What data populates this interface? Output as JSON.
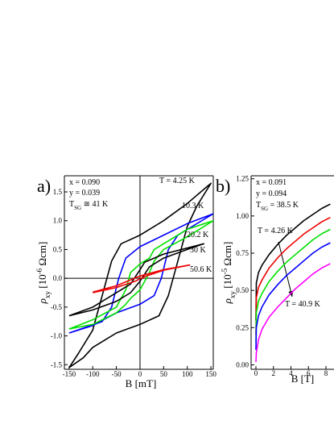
{
  "chart_data": [
    {
      "type": "line",
      "panel_label": "a)",
      "xlabel": "B [mT]",
      "ylabel": {
        "symbol": "ρ",
        "sub": "xy",
        "pre": " [10",
        "sup": "-6",
        "post": " Ωcm]"
      },
      "annotations": [
        "x = 0.090",
        "y = 0.039"
      ],
      "tsg": {
        "main": "T",
        "sub": "SG",
        "rest": " ≅ 41 K"
      },
      "xlim": [
        -160,
        155
      ],
      "ylim": [
        -1.58,
        1.78
      ],
      "xticks": [
        -150,
        -100,
        -50,
        0,
        50,
        100,
        150
      ],
      "yticks": [
        -1.5,
        {
          "value": -1,
          "label": "-1.0"
        },
        -0.5,
        {
          "value": 0,
          "label": "0.0"
        },
        0.5,
        {
          "value": 1,
          "label": "1.0"
        },
        1.5
      ],
      "zero_lines": true,
      "grid": false,
      "series": [
        {
          "name": "T = 4.25 K",
          "color": "#000000",
          "x": [
            -150,
            -120,
            -100,
            -50,
            0,
            40,
            60,
            80,
            100,
            120,
            150,
            100,
            50,
            0,
            -40,
            -60,
            -80,
            -100,
            -130,
            -150
          ],
          "values": [
            -1.55,
            -1.38,
            -1.2,
            -0.95,
            -0.8,
            -0.65,
            -0.3,
            0.3,
            0.9,
            1.25,
            1.65,
            1.3,
            1.0,
            0.75,
            0.6,
            0.3,
            -0.3,
            -0.9,
            -1.3,
            -1.55
          ]
        },
        {
          "name": "10.3 K",
          "color": "#0000ff",
          "x": [
            -150,
            -100,
            -50,
            0,
            30,
            45,
            60,
            80,
            155,
            100,
            50,
            0,
            -30,
            -45,
            -60,
            -80,
            -150
          ],
          "values": [
            -0.95,
            -0.82,
            -0.6,
            -0.45,
            -0.3,
            0,
            0.5,
            0.75,
            1.12,
            0.95,
            0.75,
            0.55,
            0.35,
            0,
            -0.5,
            -0.75,
            -0.95
          ]
        },
        {
          "name": "20.2 K",
          "color": "#00e000",
          "x": [
            -150,
            -100,
            -50,
            -30,
            -20,
            0,
            20,
            30,
            50,
            100,
            155,
            100,
            50,
            30,
            20,
            0,
            -20,
            -30,
            -50,
            -100,
            -150
          ],
          "values": [
            -0.88,
            -0.8,
            -0.6,
            -0.45,
            -0.35,
            -0.2,
            0.1,
            0.3,
            0.5,
            0.72,
            1.0,
            0.85,
            0.6,
            0.5,
            0.35,
            0.25,
            0.1,
            -0.2,
            -0.5,
            -0.72,
            -0.88
          ]
        },
        {
          "name": "30 K",
          "color": "#000000",
          "x": [
            -150,
            -100,
            -50,
            -20,
            0,
            20,
            50,
            100,
            135,
            50,
            10,
            0,
            -20,
            -100,
            -150
          ],
          "values": [
            -0.65,
            -0.55,
            -0.4,
            -0.25,
            -0.05,
            0.2,
            0.35,
            0.5,
            0.6,
            0.42,
            0.28,
            0.15,
            -0.1,
            -0.5,
            -0.65
          ]
        },
        {
          "name": "50.6 K",
          "color": "#ee0000",
          "x": [
            -100,
            -50,
            -10,
            10,
            50,
            105,
            50,
            0,
            -50,
            -100
          ],
          "values": [
            -0.25,
            -0.16,
            -0.05,
            0.03,
            0.14,
            0.23,
            0.15,
            0.04,
            -0.13,
            -0.24
          ]
        }
      ]
    },
    {
      "type": "line",
      "panel_label": "b)",
      "xlabel": "B [T]",
      "ylabel": {
        "symbol": "ρ",
        "sub": "xy",
        "pre": " [10",
        "sup": "-5",
        "post": " Ωcm]"
      },
      "annotations": [
        "x = 0.091",
        "y = 0.094"
      ],
      "tsg": {
        "main": "T",
        "sub": "SG",
        "rest": " = 38.5 K"
      },
      "xlim": [
        -0.55,
        8.92
      ],
      "ylim": [
        -0.03,
        1.27
      ],
      "xticks": [
        0,
        2,
        4,
        6,
        8
      ],
      "yticks": [
        {
          "value": 0,
          "label": "0.00"
        },
        0.25,
        {
          "value": 0.5,
          "label": "0.50"
        },
        0.75,
        {
          "value": 1,
          "label": "1.00"
        },
        1.25
      ],
      "zero_lines": false,
      "grid": false,
      "x": [
        0,
        0.05,
        0.3,
        0.7,
        1.5,
        2.5,
        3.5,
        4.5,
        5.5,
        6.5,
        7.5,
        8.5
      ],
      "series": [
        {
          "name": "T = 4.26 K",
          "color": "#000000",
          "values": [
            0.3,
            0.55,
            0.62,
            0.67,
            0.74,
            0.81,
            0.87,
            0.92,
            0.97,
            1.01,
            1.05,
            1.08
          ]
        },
        {
          "color": "#ee0000",
          "values": [
            0.2,
            0.45,
            0.52,
            0.57,
            0.65,
            0.72,
            0.78,
            0.83,
            0.88,
            0.92,
            0.96,
            0.99
          ]
        },
        {
          "color": "#00e000",
          "values": [
            0.15,
            0.35,
            0.43,
            0.48,
            0.56,
            0.63,
            0.69,
            0.74,
            0.79,
            0.84,
            0.88,
            0.91
          ]
        },
        {
          "color": "#0000ff",
          "values": [
            0.1,
            0.25,
            0.33,
            0.39,
            0.47,
            0.54,
            0.6,
            0.65,
            0.7,
            0.75,
            0.79,
            0.82
          ]
        },
        {
          "name": "T = 40.9 K",
          "color": "#ff00ff",
          "values": [
            0.02,
            0.08,
            0.17,
            0.24,
            0.32,
            0.39,
            0.45,
            0.51,
            0.56,
            0.61,
            0.65,
            0.68
          ]
        }
      ]
    }
  ]
}
